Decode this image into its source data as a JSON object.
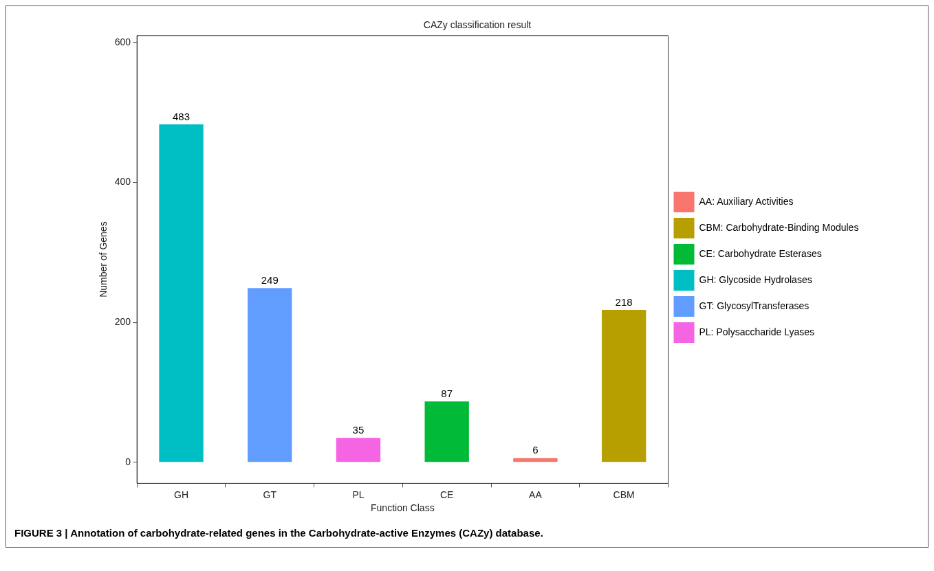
{
  "chart_data": {
    "type": "bar",
    "title": "CAZy classification result",
    "xlabel": "Function Class",
    "ylabel": "Number of Genes",
    "categories": [
      "GH",
      "GT",
      "PL",
      "CE",
      "AA",
      "CBM"
    ],
    "series": [
      {
        "name": "AA: Auxiliary Activities",
        "color": "#f8766d",
        "values": [
          null,
          null,
          null,
          null,
          6,
          null
        ]
      },
      {
        "name": "CBM: Carbohydrate-Binding Modules",
        "color": "#b79f00",
        "values": [
          null,
          null,
          null,
          null,
          null,
          218
        ]
      },
      {
        "name": "CE: Carbohydrate Esterases",
        "color": "#00ba38",
        "values": [
          null,
          null,
          null,
          87,
          null,
          null
        ]
      },
      {
        "name": "GH: Glycoside Hydrolases",
        "color": "#00bfc4",
        "values": [
          483,
          null,
          null,
          null,
          null,
          null
        ]
      },
      {
        "name": "GT: GlycosylTransferases",
        "color": "#619cff",
        "values": [
          null,
          249,
          null,
          null,
          null,
          null
        ]
      },
      {
        "name": "PL: Polysaccharide Lyases",
        "color": "#f564e3",
        "values": [
          null,
          null,
          35,
          null,
          null,
          null
        ]
      }
    ],
    "ylim": [
      -30,
      610
    ],
    "yticks": [
      0,
      200,
      400,
      600
    ],
    "grid": false,
    "legend": "right",
    "data_labels": true,
    "annotations": [
      "FIGURE 3 | Annotation of carbohydrate-related genes in the Carbohydrate-active Enzymes (CAZy) database."
    ]
  }
}
